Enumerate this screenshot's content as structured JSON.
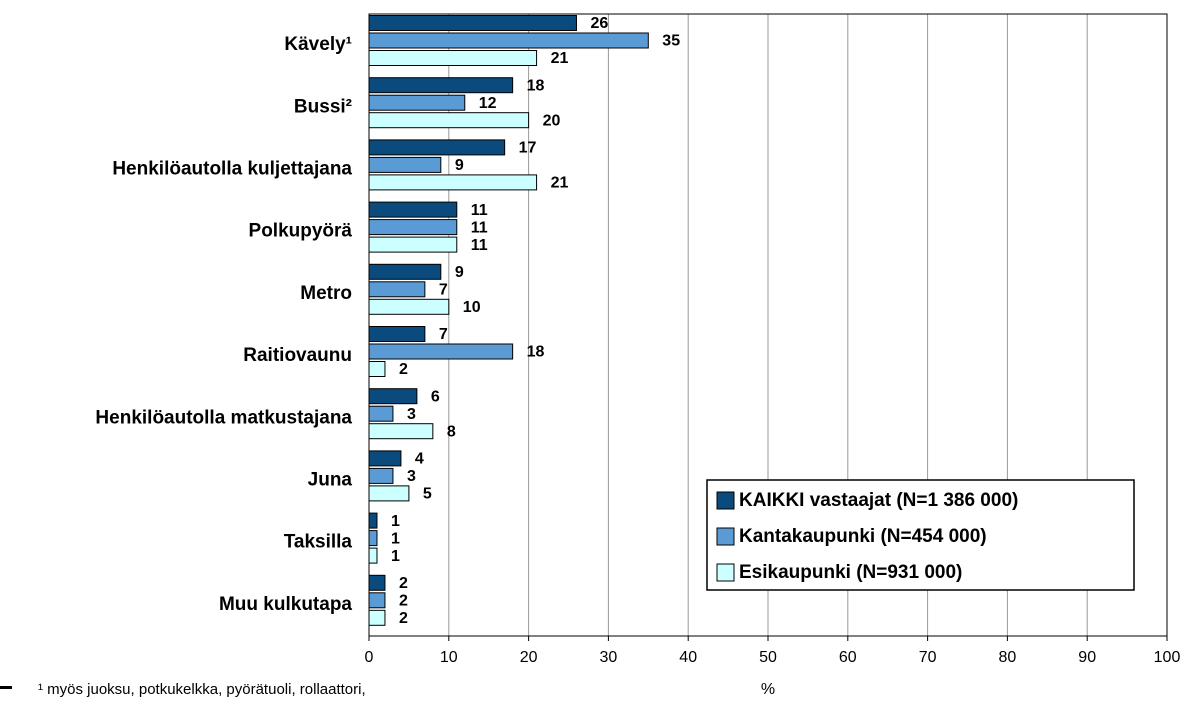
{
  "chart_data": {
    "type": "bar",
    "orientation": "horizontal",
    "categories": [
      "Kävely¹",
      "Bussi²",
      "Henkilöautolla kuljettajana",
      "Polkupyörä",
      "Metro",
      "Raitiovaunu",
      "Henkilöautolla matkustajana",
      "Juna",
      "Taksilla",
      "Muu kulkutapa"
    ],
    "series": [
      {
        "name": "KAIKKI vastaajat (N=1 386 000)",
        "color": "#0b4a7c",
        "values": [
          26,
          18,
          17,
          11,
          9,
          7,
          6,
          4,
          1,
          2
        ]
      },
      {
        "name": "Kantakaupunki (N=454 000)",
        "color": "#5b9bd5",
        "values": [
          35,
          12,
          9,
          11,
          7,
          18,
          3,
          3,
          1,
          2
        ]
      },
      {
        "name": "Esikaupunki (N=931 000)",
        "color": "#ccffff",
        "values": [
          21,
          20,
          21,
          11,
          10,
          2,
          8,
          5,
          1,
          2
        ]
      }
    ],
    "xlim": [
      0,
      100
    ],
    "xticks": [
      0,
      10,
      20,
      30,
      40,
      50,
      60,
      70,
      80,
      90,
      100
    ],
    "xlabel": "%",
    "grid": true,
    "legend": "lower right",
    "footnote": "¹ myös juoksu, potkukelkka, pyörätuoli, rollaattori,"
  }
}
